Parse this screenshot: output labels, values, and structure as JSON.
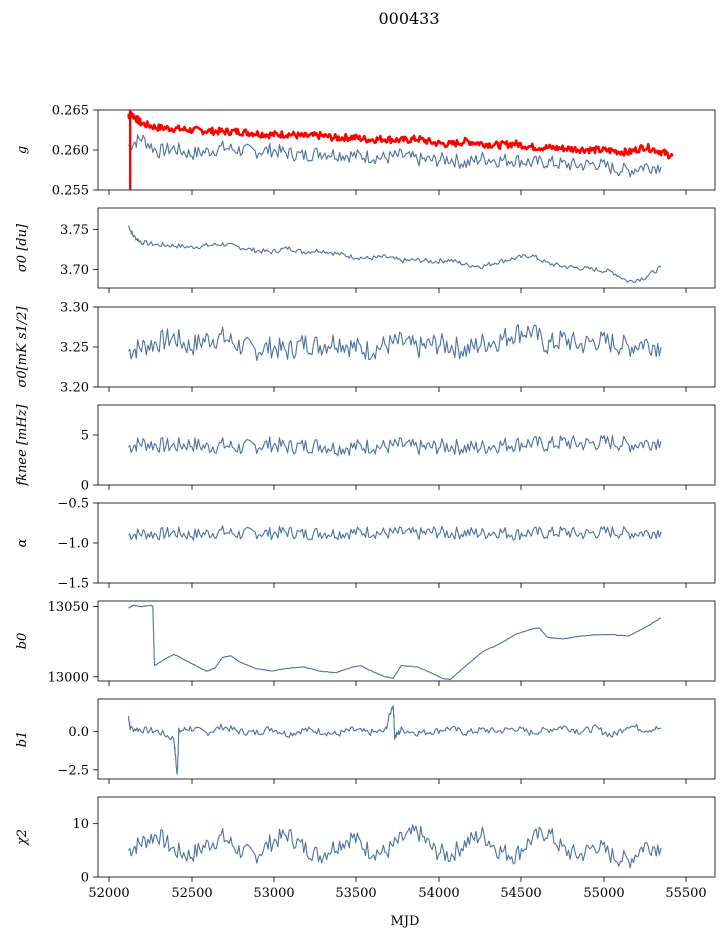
{
  "figure": {
    "title": "000433",
    "xlabel": "MJD"
  },
  "colors": {
    "series": "#4c72a0",
    "highlight": "#ff0000"
  },
  "chart_data": [
    {
      "type": "line",
      "ylabel": "g",
      "xlim": [
        51900,
        55700
      ],
      "ylim": [
        0.255,
        0.265
      ],
      "yticks": [
        0.255,
        0.26,
        0.265
      ],
      "ytick_labels": [
        "0.255",
        "0.260",
        "0.265"
      ],
      "series": [
        {
          "color": "#4c72a0",
          "x": [
            52120,
            52200,
            52300,
            52400,
            52500,
            52600,
            52700,
            52800,
            52900,
            53000,
            53100,
            53200,
            53300,
            53400,
            53500,
            53600,
            53700,
            53800,
            53900,
            54000,
            54100,
            54200,
            54300,
            54400,
            54500,
            54600,
            54700,
            54800,
            54900,
            55000,
            55100,
            55200,
            55300,
            55400
          ],
          "y": [
            0.2605,
            0.2615,
            0.2598,
            0.2602,
            0.2595,
            0.2598,
            0.2603,
            0.26,
            0.2598,
            0.26,
            0.2596,
            0.2593,
            0.2597,
            0.2595,
            0.2593,
            0.2592,
            0.259,
            0.2593,
            0.2588,
            0.2587,
            0.2589,
            0.2583,
            0.259,
            0.2587,
            0.2588,
            0.2584,
            0.2585,
            0.2582,
            0.2581,
            0.2583,
            0.2577,
            0.2574,
            0.258,
            0.2579
          ]
        },
        {
          "color": "#ff0000",
          "x": [
            52120,
            52140,
            52200,
            52300,
            52400,
            52500,
            52600,
            52700,
            52800,
            52900,
            53000,
            53100,
            53200,
            53300,
            53400,
            53500,
            53600,
            53700,
            53800,
            53900,
            54000,
            54100,
            54200,
            54300,
            54400,
            54500,
            54600,
            54700,
            54800,
            54900,
            55000,
            55100,
            55200,
            55300,
            55400,
            55470
          ],
          "y": [
            0.2643,
            0.2645,
            0.2633,
            0.2628,
            0.2627,
            0.2625,
            0.2624,
            0.2623,
            0.2623,
            0.2621,
            0.2619,
            0.262,
            0.2617,
            0.2618,
            0.2615,
            0.2616,
            0.2613,
            0.2614,
            0.2612,
            0.2614,
            0.2609,
            0.2607,
            0.2611,
            0.2608,
            0.2606,
            0.2608,
            0.2604,
            0.2603,
            0.2602,
            0.2601,
            0.26,
            0.2599,
            0.2597,
            0.2604,
            0.2598,
            0.2592
          ]
        }
      ]
    },
    {
      "type": "line",
      "ylabel": "σ0 [du]",
      "xlim": [
        51900,
        55700
      ],
      "ylim": [
        3.677,
        3.777
      ],
      "yticks": [
        3.7,
        3.75
      ],
      "ytick_labels": [
        "3.70",
        "3.75"
      ],
      "series": [
        {
          "color": "#4c72a0",
          "x": [
            52120,
            52150,
            52200,
            52300,
            52400,
            52500,
            52600,
            52700,
            52800,
            52900,
            53000,
            53100,
            53200,
            53300,
            53400,
            53500,
            53600,
            53700,
            53800,
            53900,
            54000,
            54100,
            54200,
            54300,
            54400,
            54500,
            54600,
            54700,
            54800,
            54900,
            55000,
            55100,
            55200,
            55300,
            55400
          ],
          "y": [
            3.755,
            3.742,
            3.734,
            3.731,
            3.73,
            3.728,
            3.73,
            3.732,
            3.728,
            3.724,
            3.722,
            3.727,
            3.722,
            3.724,
            3.72,
            3.716,
            3.714,
            3.716,
            3.711,
            3.712,
            3.71,
            3.712,
            3.706,
            3.704,
            3.71,
            3.714,
            3.718,
            3.708,
            3.704,
            3.702,
            3.7,
            3.697,
            3.685,
            3.69,
            3.703
          ]
        }
      ]
    },
    {
      "type": "line",
      "ylabel": "σ0[mK s1/2]",
      "xlim": [
        51900,
        55700
      ],
      "ylim": [
        3.2,
        3.3
      ],
      "yticks": [
        3.2,
        3.25,
        3.3
      ],
      "ytick_labels": [
        "3.20",
        "3.25",
        "3.30"
      ],
      "series": [
        {
          "color": "#4c72a0",
          "x": [
            52120,
            52200,
            52300,
            52400,
            52500,
            52600,
            52700,
            52800,
            52900,
            53000,
            53100,
            53200,
            53300,
            53400,
            53500,
            53600,
            53700,
            53800,
            53900,
            54000,
            54100,
            54200,
            54300,
            54400,
            54500,
            54600,
            54700,
            54800,
            54900,
            55000,
            55100,
            55200,
            55300,
            55400
          ],
          "y": [
            3.245,
            3.25,
            3.256,
            3.262,
            3.25,
            3.26,
            3.262,
            3.252,
            3.246,
            3.25,
            3.245,
            3.255,
            3.252,
            3.258,
            3.25,
            3.246,
            3.252,
            3.256,
            3.248,
            3.254,
            3.252,
            3.246,
            3.255,
            3.258,
            3.268,
            3.27,
            3.252,
            3.26,
            3.252,
            3.258,
            3.255,
            3.25,
            3.256,
            3.25
          ]
        }
      ]
    },
    {
      "type": "line",
      "ylabel": "fknee [mHz]",
      "xlim": [
        51900,
        55700
      ],
      "ylim": [
        0,
        8
      ],
      "yticks": [
        0,
        5
      ],
      "ytick_labels": [
        "0",
        "5"
      ],
      "series": [
        {
          "color": "#4c72a0",
          "x": [
            52120,
            52200,
            52300,
            52400,
            52500,
            52600,
            52700,
            52800,
            52900,
            53000,
            53100,
            53200,
            53300,
            53400,
            53500,
            53600,
            53700,
            53800,
            53900,
            54000,
            54100,
            54200,
            54300,
            54400,
            54500,
            54600,
            54700,
            54800,
            54900,
            55000,
            55100,
            55200,
            55300,
            55400
          ],
          "y": [
            3.8,
            4.2,
            4.0,
            3.9,
            4.1,
            3.8,
            4.0,
            3.7,
            3.9,
            4.1,
            3.8,
            3.9,
            4.0,
            3.7,
            3.8,
            3.9,
            3.8,
            4.0,
            3.7,
            3.8,
            3.9,
            3.7,
            3.8,
            4.0,
            4.1,
            4.2,
            4.0,
            4.3,
            4.1,
            4.2,
            4.3,
            4.0,
            4.2,
            4.4
          ]
        }
      ]
    },
    {
      "type": "line",
      "ylabel": "α",
      "xlim": [
        51900,
        55700
      ],
      "ylim": [
        -1.5,
        -0.5
      ],
      "yticks": [
        -1.5,
        -1.0,
        -0.5
      ],
      "ytick_labels": [
        "−1.5",
        "−1.0",
        "−0.5"
      ],
      "series": [
        {
          "color": "#4c72a0",
          "x": [
            52120,
            52200,
            52300,
            52400,
            52500,
            52600,
            52700,
            52800,
            52900,
            53000,
            53100,
            53200,
            53300,
            53400,
            53500,
            53600,
            53700,
            53800,
            53900,
            54000,
            54100,
            54200,
            54300,
            54400,
            54500,
            54600,
            54700,
            54800,
            54900,
            55000,
            55100,
            55200,
            55300,
            55400
          ],
          "y": [
            -0.9,
            -0.88,
            -0.89,
            -0.87,
            -0.9,
            -0.88,
            -0.86,
            -0.89,
            -0.87,
            -0.88,
            -0.86,
            -0.89,
            -0.87,
            -0.88,
            -0.87,
            -0.86,
            -0.88,
            -0.87,
            -0.89,
            -0.86,
            -0.88,
            -0.87,
            -0.88,
            -0.86,
            -0.89,
            -0.87,
            -0.88,
            -0.86,
            -0.89,
            -0.87,
            -0.86,
            -0.88,
            -0.87,
            -0.86
          ]
        }
      ]
    },
    {
      "type": "line",
      "ylabel": "b0",
      "xlim": [
        51900,
        55700
      ],
      "ylim": [
        12997,
        13054
      ],
      "yticks": [
        13000,
        13050
      ],
      "ytick_labels": [
        "13000",
        "13050"
      ],
      "series": [
        {
          "color": "#4c72a0",
          "x": [
            52120,
            52150,
            52200,
            52260,
            52270,
            52280,
            52350,
            52400,
            52450,
            52500,
            52550,
            52600,
            52650,
            52700,
            52750,
            52800,
            52900,
            53000,
            53100,
            53200,
            53300,
            53400,
            53500,
            53550,
            53600,
            53700,
            53750,
            53800,
            53900,
            54000,
            54050,
            54100,
            54200,
            54300,
            54400,
            54500,
            54600,
            54650,
            54700,
            54800,
            54900,
            55000,
            55100,
            55200,
            55300,
            55400
          ],
          "y": [
            13049,
            13051,
            13050,
            13051,
            13050,
            13008,
            13013,
            13016,
            13013,
            13010,
            13007,
            13004,
            13006,
            13014,
            13015,
            13011,
            13006,
            13004,
            13006,
            13007,
            13004,
            13003,
            13007,
            13008,
            13005,
            13000,
            12999,
            13008,
            13007,
            13002,
            12999,
            12998,
            13008,
            13018,
            13023,
            13030,
            13034,
            13035,
            13028,
            13027,
            13029,
            13030,
            13030,
            13029,
            13035,
            13042
          ]
        }
      ]
    },
    {
      "type": "line",
      "ylabel": "b1",
      "xlim": [
        51900,
        55700
      ],
      "ylim": [
        -3.1,
        2.1
      ],
      "yticks": [
        -2.5,
        0.0
      ],
      "ytick_labels": [
        "−2.5",
        "0.0"
      ],
      "series": [
        {
          "color": "#4c72a0",
          "x": [
            52120,
            52130,
            52200,
            52300,
            52400,
            52420,
            52430,
            52500,
            52600,
            52700,
            52800,
            52900,
            53000,
            53100,
            53200,
            53300,
            53400,
            53500,
            53600,
            53700,
            53750,
            53760,
            53800,
            53900,
            54000,
            54100,
            54200,
            54300,
            54400,
            54500,
            54600,
            54700,
            54800,
            54900,
            55000,
            55100,
            55200,
            55300,
            55400
          ],
          "y": [
            1.0,
            0.2,
            0.1,
            0.0,
            -0.5,
            -2.9,
            0.0,
            0.2,
            -0.1,
            0.3,
            0.0,
            -0.1,
            0.2,
            -0.2,
            0.1,
            0.0,
            -0.2,
            0.1,
            -0.1,
            0.0,
            1.8,
            -0.4,
            0.1,
            -0.1,
            0.0,
            0.2,
            -0.1,
            0.1,
            0.0,
            0.2,
            -0.1,
            0.1,
            0.3,
            0.0,
            0.2,
            -0.3,
            0.4,
            0.1,
            0.2
          ]
        }
      ]
    },
    {
      "type": "line",
      "ylabel": "χ2",
      "xlabel": "MJD",
      "xlim": [
        51900,
        55700
      ],
      "ylim": [
        0,
        15
      ],
      "yticks": [
        0,
        10
      ],
      "ytick_labels": [
        "0",
        "10"
      ],
      "xticks": [
        52000,
        52500,
        53000,
        53500,
        54000,
        54500,
        55000,
        55500
      ],
      "xtick_labels": [
        "52000",
        "52500",
        "53000",
        "53500",
        "54000",
        "54500",
        "55000",
        "55500"
      ],
      "series": [
        {
          "color": "#4c72a0",
          "x": [
            52120,
            52200,
            52300,
            52400,
            52500,
            52600,
            52700,
            52800,
            52900,
            53000,
            53100,
            53200,
            53300,
            53400,
            53500,
            53600,
            53700,
            53800,
            53900,
            54000,
            54100,
            54200,
            54300,
            54400,
            54500,
            54600,
            54700,
            54800,
            54900,
            55000,
            55100,
            55200,
            55300,
            55400
          ],
          "y": [
            5.0,
            6.5,
            8.0,
            5.0,
            4.0,
            6.0,
            7.5,
            5.0,
            4.0,
            6.5,
            8.0,
            5.5,
            4.0,
            6.0,
            7.5,
            5.0,
            4.5,
            7.0,
            8.5,
            5.0,
            4.0,
            6.5,
            8.0,
            5.0,
            4.0,
            7.0,
            8.5,
            5.0,
            4.0,
            6.0,
            4.0,
            3.0,
            6.0,
            5.5
          ]
        }
      ]
    }
  ]
}
